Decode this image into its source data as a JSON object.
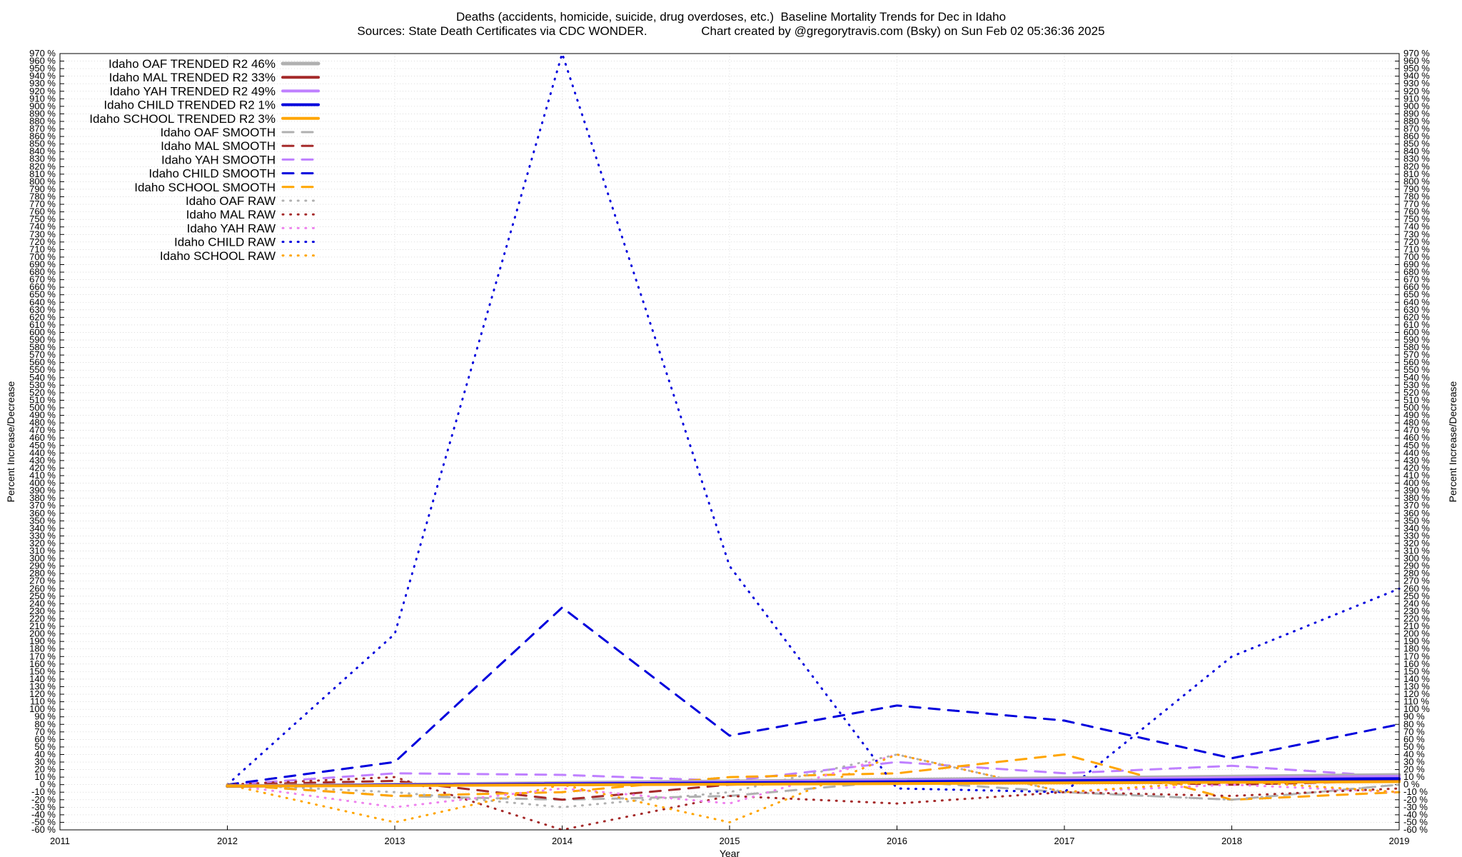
{
  "title_line1": "Deaths (accidents, homicide, suicide, drug overdoses, etc.)  Baseline Mortality Trends for Dec in Idaho",
  "title_line2": "Sources: State Death Certificates via CDC WONDER.                Chart created by @gregorytravis.com (Bsky) on Sun Feb 02 05:36:36 2025",
  "chart_data": {
    "type": "line",
    "xlabel": "Year",
    "ylabel": "Percent Increase/Decrease",
    "y2label": "Percent Increase/Decrease",
    "xlim": [
      2011,
      2019
    ],
    "ylim": [
      -60,
      970
    ],
    "ytick_step": 10,
    "ytick_suffix": " %",
    "xticks": [
      "2011",
      "2012",
      "2013",
      "2014",
      "2015",
      "2016",
      "2017",
      "2018",
      "2019"
    ],
    "grid": true,
    "legend_position": "top-left",
    "series": [
      {
        "name": "Idaho OAF TRENDED R2  46%",
        "style": "solid",
        "color": "#b0b0b0",
        "width": 5,
        "x": [
          2012,
          2019
        ],
        "y": [
          -2,
          13
        ]
      },
      {
        "name": "Idaho MAL TRENDED R2  33%",
        "style": "solid",
        "color": "#a52a2a",
        "width": 4,
        "x": [
          2012,
          2019
        ],
        "y": [
          -2,
          6
        ]
      },
      {
        "name": "Idaho YAH TRENDED R2  49%",
        "style": "solid",
        "color": "#bf80ff",
        "width": 4,
        "x": [
          2012,
          2019
        ],
        "y": [
          -2,
          11
        ]
      },
      {
        "name": "Idaho CHILD TRENDED R2  1%",
        "style": "solid",
        "color": "#0000dd",
        "width": 4,
        "x": [
          2012,
          2019
        ],
        "y": [
          -2,
          8
        ]
      },
      {
        "name": "Idaho SCHOOL TRENDED R2  3%",
        "style": "solid",
        "color": "#ffa500",
        "width": 4,
        "x": [
          2012,
          2019
        ],
        "y": [
          -2,
          4
        ]
      },
      {
        "name": "Idaho OAF SMOOTH",
        "style": "dashed",
        "color": "#b0b0b0",
        "width": 3,
        "x": [
          2012,
          2013,
          2014,
          2015,
          2016,
          2017,
          2018,
          2019
        ],
        "y": [
          0,
          -15,
          -20,
          -15,
          5,
          -10,
          -20,
          0
        ]
      },
      {
        "name": "Idaho MAL SMOOTH",
        "style": "dashed",
        "color": "#a52a2a",
        "width": 3,
        "x": [
          2012,
          2013,
          2014,
          2015,
          2016,
          2017,
          2018,
          2019
        ],
        "y": [
          0,
          5,
          -20,
          0,
          5,
          5,
          0,
          5
        ]
      },
      {
        "name": "Idaho YAH SMOOTH",
        "style": "dashed",
        "color": "#bf80ff",
        "width": 3,
        "x": [
          2012,
          2013,
          2014,
          2015,
          2016,
          2017,
          2018,
          2019
        ],
        "y": [
          0,
          15,
          13,
          5,
          30,
          15,
          25,
          10
        ]
      },
      {
        "name": "Idaho CHILD SMOOTH",
        "style": "dashed",
        "color": "#0000dd",
        "width": 3,
        "x": [
          2012,
          2013,
          2014,
          2015,
          2016,
          2017,
          2018,
          2019
        ],
        "y": [
          0,
          30,
          235,
          65,
          105,
          85,
          35,
          80
        ]
      },
      {
        "name": "Idaho SCHOOL SMOOTH",
        "style": "dashed",
        "color": "#ffa500",
        "width": 3,
        "x": [
          2012,
          2013,
          2014,
          2015,
          2016,
          2017,
          2018,
          2019
        ],
        "y": [
          0,
          -15,
          -10,
          10,
          15,
          40,
          -20,
          -10
        ]
      },
      {
        "name": "Idaho OAF RAW",
        "style": "dotted",
        "color": "#b0b0b0",
        "width": 3,
        "x": [
          2012,
          2013,
          2014,
          2015,
          2016,
          2017,
          2018,
          2019
        ],
        "y": [
          0,
          -10,
          -30,
          -10,
          40,
          -10,
          -20,
          0
        ]
      },
      {
        "name": "Idaho MAL RAW",
        "style": "dotted",
        "color": "#a52a2a",
        "width": 3,
        "x": [
          2012,
          2013,
          2014,
          2015,
          2016,
          2017,
          2018,
          2019
        ],
        "y": [
          0,
          10,
          -60,
          -15,
          -25,
          -10,
          -15,
          -5
        ]
      },
      {
        "name": "Idaho YAH RAW",
        "style": "dotted",
        "color": "#ee82ee",
        "width": 3,
        "x": [
          2012,
          2013,
          2014,
          2015,
          2016,
          2017,
          2018,
          2019
        ],
        "y": [
          0,
          -30,
          -5,
          -25,
          40,
          -10,
          0,
          -10
        ]
      },
      {
        "name": "Idaho CHILD RAW",
        "style": "dotted",
        "color": "#0000dd",
        "width": 3,
        "x": [
          2012,
          2013,
          2014,
          2015,
          2016,
          2017,
          2018,
          2019
        ],
        "y": [
          0,
          200,
          970,
          290,
          -5,
          -10,
          170,
          260
        ]
      },
      {
        "name": "Idaho SCHOOL RAW",
        "style": "dotted",
        "color": "#ffa500",
        "width": 3,
        "x": [
          2012,
          2013,
          2014,
          2015,
          2016,
          2017,
          2018,
          2019
        ],
        "y": [
          0,
          -50,
          0,
          -50,
          40,
          -10,
          5,
          -10
        ]
      }
    ]
  }
}
